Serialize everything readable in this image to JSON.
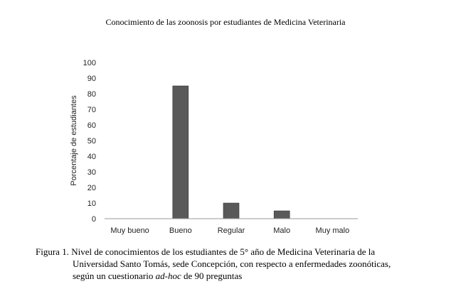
{
  "title": "Conocimiento de las zoonosis por estudiantes de Medicina Veterinaria",
  "chart_data": {
    "type": "bar",
    "categories": [
      "Muy bueno",
      "Bueno",
      "Regular",
      "Malo",
      "Muy malo"
    ],
    "values": [
      0,
      85,
      10,
      5,
      0
    ],
    "ylabel": "Porcentaje de estudiantes",
    "xlabel": "",
    "ylim": [
      0,
      100
    ],
    "yticks": [
      0,
      10,
      20,
      30,
      40,
      50,
      60,
      70,
      80,
      90,
      100
    ],
    "bar_color": "#595959",
    "grid": false
  },
  "caption": {
    "line1": "Figura 1. Nivel de conocimientos de los estudiantes de 5° año de Medicina Veterinaria de la",
    "line2": "Universidad Santo Tomás, sede Concepción, con respecto a enfermedades zoonóticas,",
    "line3_pre": "según un cuestionario ",
    "line3_italic": "ad-hoc",
    "line3_post": " de 90 preguntas"
  }
}
